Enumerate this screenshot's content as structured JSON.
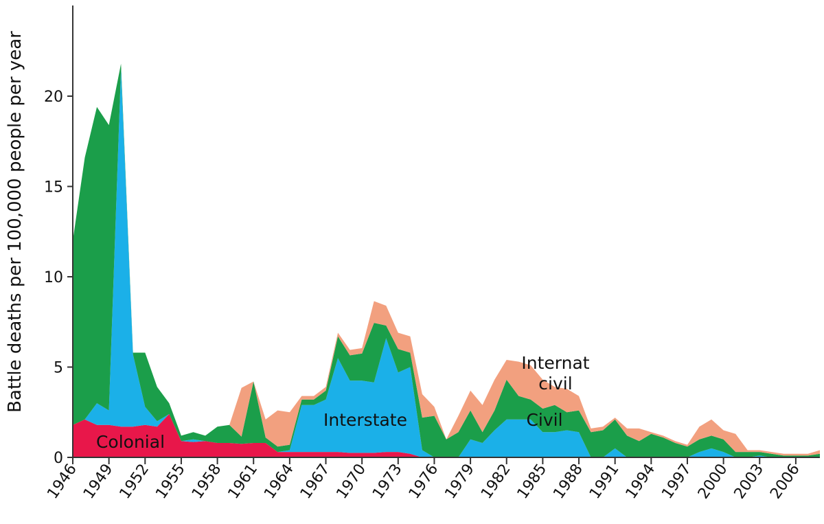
{
  "chart_data": {
    "type": "area",
    "stacked": true,
    "title": "",
    "xlabel": "",
    "ylabel": "Battle deaths per 100,000 people per year",
    "xlim": [
      1946,
      2008
    ],
    "ylim": [
      0,
      25
    ],
    "yticks": [
      0,
      5,
      10,
      15,
      20
    ],
    "yticklabels": [
      "0",
      "5",
      "10",
      "15",
      "20"
    ],
    "xticks": [
      1946,
      1949,
      1952,
      1955,
      1958,
      1961,
      1964,
      1967,
      1970,
      1973,
      1976,
      1979,
      1982,
      1985,
      1988,
      1991,
      1994,
      1997,
      2000,
      2003,
      2006
    ],
    "xticklabels": [
      "1946",
      "1949",
      "1952",
      "1955",
      "1958",
      "1961",
      "1964",
      "1967",
      "1970",
      "1973",
      "1976",
      "1979",
      "1982",
      "1985",
      "1988",
      "1991",
      "1994",
      "1997",
      "2000",
      "2003",
      "2006"
    ],
    "grid": false,
    "legend": "none",
    "x": [
      1946,
      1947,
      1948,
      1949,
      1950,
      1951,
      1952,
      1953,
      1954,
      1955,
      1956,
      1957,
      1958,
      1959,
      1960,
      1961,
      1962,
      1963,
      1964,
      1965,
      1966,
      1967,
      1968,
      1969,
      1970,
      1971,
      1972,
      1973,
      1974,
      1975,
      1976,
      1977,
      1978,
      1979,
      1980,
      1981,
      1982,
      1983,
      1984,
      1985,
      1986,
      1987,
      1988,
      1989,
      1990,
      1991,
      1992,
      1993,
      1994,
      1995,
      1996,
      1997,
      1998,
      1999,
      2000,
      2001,
      2002,
      2003,
      2004,
      2005,
      2006,
      2007,
      2008
    ],
    "series": [
      {
        "name": "Colonial",
        "color": "#e8174a",
        "values": [
          1.8,
          2.1,
          1.8,
          1.8,
          1.7,
          1.7,
          1.8,
          1.7,
          2.4,
          0.9,
          0.85,
          0.9,
          0.8,
          0.8,
          0.75,
          0.8,
          0.8,
          0.3,
          0.3,
          0.3,
          0.3,
          0.3,
          0.3,
          0.25,
          0.25,
          0.25,
          0.3,
          0.3,
          0.2,
          0,
          0,
          0,
          0,
          0,
          0,
          0,
          0,
          0,
          0,
          0,
          0,
          0,
          0,
          0,
          0,
          0,
          0,
          0,
          0,
          0,
          0,
          0,
          0,
          0,
          0,
          0,
          0,
          0,
          0,
          0,
          0,
          0,
          0
        ]
      },
      {
        "name": "Interstate",
        "color": "#1bb0e8",
        "values": [
          0,
          0,
          1.2,
          0.8,
          19.8,
          4.0,
          1.0,
          0.3,
          0,
          0,
          0.15,
          0,
          0,
          0,
          0,
          0,
          0,
          0,
          0.1,
          2.6,
          2.6,
          2.9,
          5.2,
          4.0,
          4.0,
          3.9,
          6.3,
          4.4,
          4.8,
          0.4,
          0,
          0,
          0,
          1.0,
          0.8,
          1.5,
          2.1,
          2.1,
          2.1,
          1.4,
          1.4,
          1.5,
          1.4,
          0,
          0,
          0.5,
          0,
          0,
          0,
          0,
          0,
          0,
          0.3,
          0.5,
          0.3,
          0,
          0,
          0.1,
          0,
          0,
          0,
          0,
          0
        ]
      },
      {
        "name": "Civil",
        "color": "#1b9e4a",
        "values": [
          10.2,
          14.5,
          16.4,
          15.8,
          0.3,
          0.1,
          3.0,
          1.9,
          0.6,
          0.3,
          0.4,
          0.3,
          0.9,
          1.0,
          0.4,
          3.4,
          0.3,
          0.3,
          0.3,
          0.3,
          0.3,
          0.5,
          1.2,
          1.4,
          1.5,
          3.3,
          0.7,
          1.3,
          0.8,
          1.8,
          2.3,
          1.0,
          1.4,
          1.6,
          0.6,
          1.1,
          2.2,
          1.3,
          1.1,
          1.3,
          1.5,
          1.0,
          1.2,
          1.4,
          1.5,
          1.6,
          1.2,
          0.9,
          1.3,
          1.1,
          0.8,
          0.6,
          0.7,
          0.7,
          0.7,
          0.3,
          0.3,
          0.2,
          0.2,
          0.1,
          0.1,
          0.1,
          0.2
        ]
      },
      {
        "name": "Internat civil",
        "color": "#f2a07f",
        "values": [
          0,
          0,
          0,
          0,
          0,
          0,
          0,
          0,
          0,
          0,
          0,
          0,
          0,
          0,
          2.7,
          0,
          1.0,
          2.0,
          1.8,
          0.2,
          0.2,
          0.2,
          0.2,
          0.3,
          0.3,
          1.2,
          1.1,
          0.9,
          0.9,
          1.3,
          0.5,
          0,
          0.9,
          1.1,
          1.5,
          1.7,
          1.1,
          1.9,
          1.9,
          1.6,
          1.0,
          1.3,
          0.8,
          0.2,
          0.2,
          0.1,
          0.4,
          0.7,
          0.1,
          0.1,
          0.1,
          0.1,
          0.7,
          0.9,
          0.5,
          1.0,
          0.1,
          0.1,
          0.1,
          0.1,
          0.1,
          0.1,
          0.2
        ]
      }
    ],
    "annotations": [
      {
        "text": "Colonial",
        "series": "Colonial"
      },
      {
        "text": "Interstate",
        "series": "Interstate"
      },
      {
        "text": "Civil",
        "series": "Civil"
      },
      {
        "text": "Internat civil",
        "series": "Internat civil"
      }
    ]
  }
}
